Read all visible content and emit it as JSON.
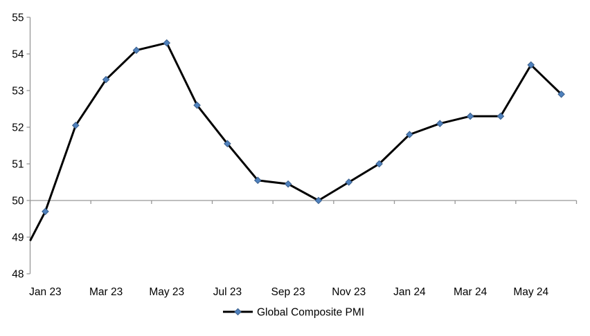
{
  "chart_data": {
    "type": "line",
    "title": "",
    "categories": [
      "Jan 23",
      "Feb 23",
      "Mar 23",
      "Apr 23",
      "May 23",
      "Jun 23",
      "Jul 23",
      "Aug 23",
      "Sep 23",
      "Oct 23",
      "Nov 23",
      "Dec 23",
      "Jan 24",
      "Feb 24",
      "Mar 24",
      "Apr 24",
      "May 24",
      "Jun 24"
    ],
    "series": [
      {
        "name": "Global Composite PMI",
        "values": [
          49.7,
          52.05,
          53.3,
          54.1,
          54.3,
          52.6,
          51.55,
          50.55,
          50.45,
          50.0,
          50.5,
          51.0,
          51.8,
          52.1,
          52.3,
          52.3,
          53.7,
          52.9
        ],
        "line_color": "#000000",
        "marker": "diamond",
        "marker_fill": "#4F81BD",
        "marker_border": "#385D8A"
      }
    ],
    "lead_in_value_at_left_edge": 48.9,
    "ylim": [
      48,
      55
    ],
    "y_ticks": [
      "48",
      "49",
      "50",
      "51",
      "52",
      "53",
      "54",
      "55"
    ],
    "x_tick_labels": [
      "Jan 23",
      "Mar 23",
      "May 23",
      "Jul 23",
      "Sep 23",
      "Nov 23",
      "Jan 24",
      "Mar 24",
      "May 24"
    ],
    "x_label_interval": 2,
    "category_axis_crosses_at": 50,
    "grid": false,
    "axis_color": "#979797",
    "legend_position": "bottom-center"
  },
  "legend": {
    "label": "Global Composite PMI"
  }
}
